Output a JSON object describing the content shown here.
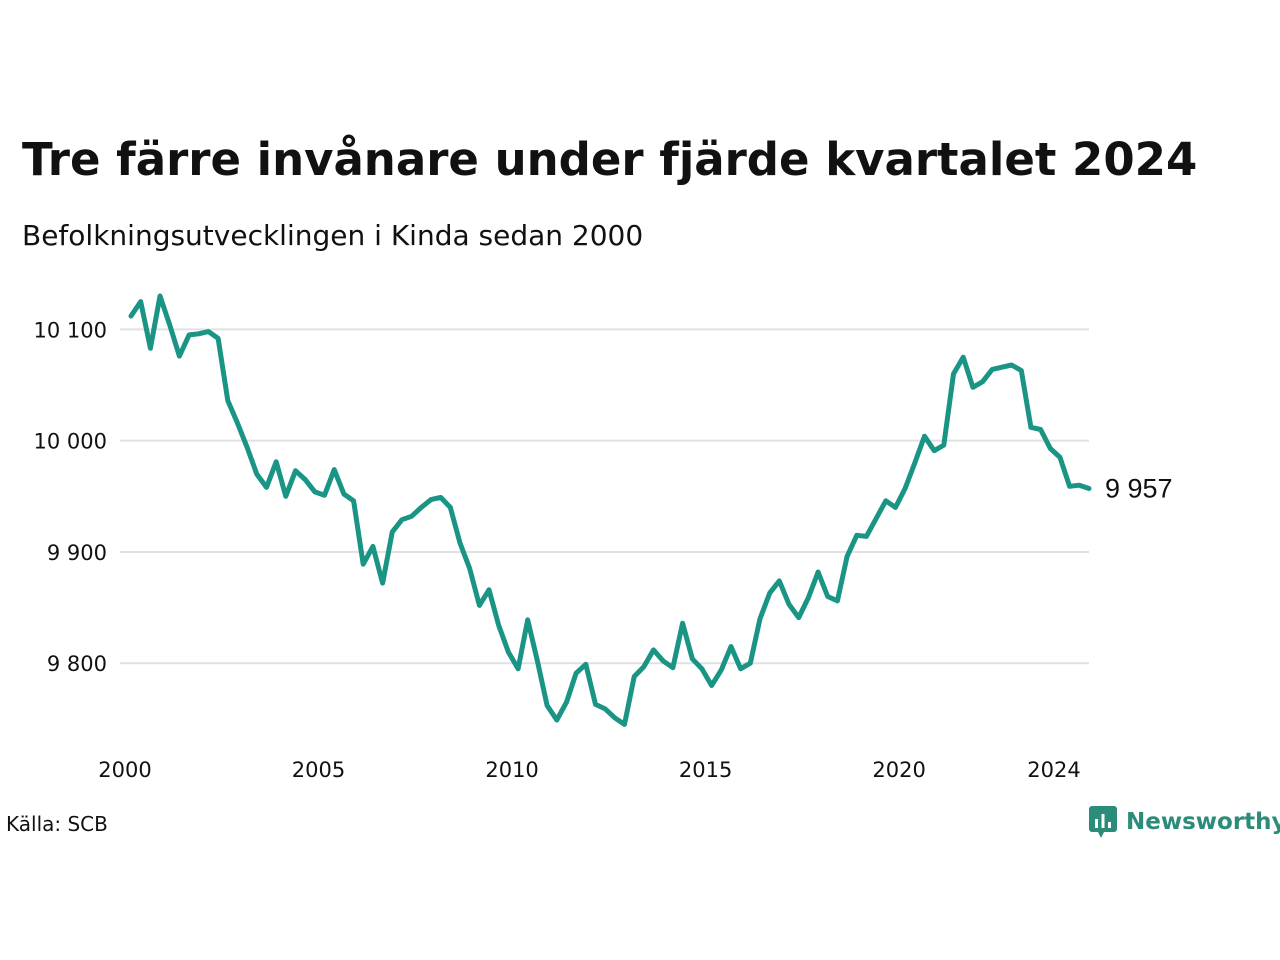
{
  "header": {
    "title": "Tre färre invånare under fjärde kvartalet 2024",
    "subtitle": "Befolkningsutvecklingen i Kinda sedan 2000"
  },
  "footer": {
    "source": "Källa: SCB",
    "brand": "Newsworthy",
    "brand_icon": "newsworthy-logo-icon"
  },
  "colors": {
    "line": "#1a9485",
    "grid": "#e1e1e1",
    "brand": "#2b8c79"
  },
  "chart_data": {
    "type": "line",
    "title": "Tre färre invånare under fjärde kvartalet 2024",
    "subtitle": "Befolkningsutvecklingen i Kinda sedan 2000",
    "xlabel": "",
    "ylabel": "",
    "x_ticks": [
      "2000",
      "2005",
      "2010",
      "2015",
      "2020",
      "2024"
    ],
    "x_tick_values": [
      2000,
      2005,
      2010,
      2015,
      2020,
      2024
    ],
    "y_ticks": [
      "9 800",
      "9 900",
      "10 000",
      "10 100"
    ],
    "y_tick_values": [
      9800,
      9900,
      10000,
      10100
    ],
    "xlim": [
      2000,
      2024.75
    ],
    "ylim": [
      9740,
      10130
    ],
    "grid": "horizontal",
    "legend": "none",
    "end_label": "9 957",
    "series": [
      {
        "x": [
          2000.0,
          2000.25,
          2000.5,
          2000.75,
          2001.0,
          2001.25,
          2001.5,
          2001.75,
          2002.0,
          2002.25,
          2002.5,
          2002.75,
          2003.0,
          2003.25,
          2003.5,
          2003.75,
          2004.0,
          2004.25,
          2004.5,
          2004.75,
          2005.0,
          2005.25,
          2005.5,
          2005.75,
          2006.0,
          2006.25,
          2006.5,
          2006.75,
          2007.0,
          2007.25,
          2007.5,
          2007.75,
          2008.0,
          2008.25,
          2008.5,
          2008.75,
          2009.0,
          2009.25,
          2009.5,
          2009.75,
          2010.0,
          2010.25,
          2010.5,
          2010.75,
          2011.0,
          2011.25,
          2011.5,
          2011.75,
          2012.0,
          2012.25,
          2012.5,
          2012.75,
          2013.0,
          2013.25,
          2013.5,
          2013.75,
          2014.0,
          2014.25,
          2014.5,
          2014.75,
          2015.0,
          2015.25,
          2015.5,
          2015.75,
          2016.0,
          2016.25,
          2016.5,
          2016.75,
          2017.0,
          2017.25,
          2017.5,
          2017.75,
          2018.0,
          2018.25,
          2018.5,
          2018.75,
          2019.0,
          2019.25,
          2019.5,
          2019.75,
          2020.0,
          2020.25,
          2020.5,
          2020.75,
          2021.0,
          2021.25,
          2021.5,
          2021.75,
          2022.0,
          2022.25,
          2022.5,
          2022.75,
          2023.0,
          2023.25,
          2023.5,
          2023.75,
          2024.0,
          2024.25,
          2024.5,
          2024.75
        ],
        "y": [
          10112,
          10125,
          10083,
          10130,
          10104,
          10076,
          10095,
          10096,
          10098,
          10092,
          10036,
          10016,
          9994,
          9970,
          9958,
          9981,
          9950,
          9973,
          9965,
          9954,
          9951,
          9974,
          9952,
          9946,
          9889,
          9905,
          9872,
          9918,
          9929,
          9932,
          9940,
          9947,
          9949,
          9940,
          9908,
          9885,
          9852,
          9866,
          9834,
          9810,
          9795,
          9839,
          9802,
          9762,
          9749,
          9765,
          9791,
          9799,
          9763,
          9759,
          9751,
          9745,
          9788,
          9797,
          9812,
          9802,
          9796,
          9836,
          9804,
          9795,
          9780,
          9794,
          9815,
          9795,
          9800,
          9840,
          9863,
          9874,
          9853,
          9841,
          9859,
          9882,
          9860,
          9856,
          9896,
          9915,
          9914,
          9930,
          9946,
          9940,
          9957,
          9980,
          10004,
          9991,
          9996,
          10060,
          10075,
          10048,
          10053,
          10064,
          10066,
          10068,
          10063,
          10012,
          10010,
          9993,
          9985,
          9959,
          9960,
          9957
        ]
      }
    ]
  }
}
